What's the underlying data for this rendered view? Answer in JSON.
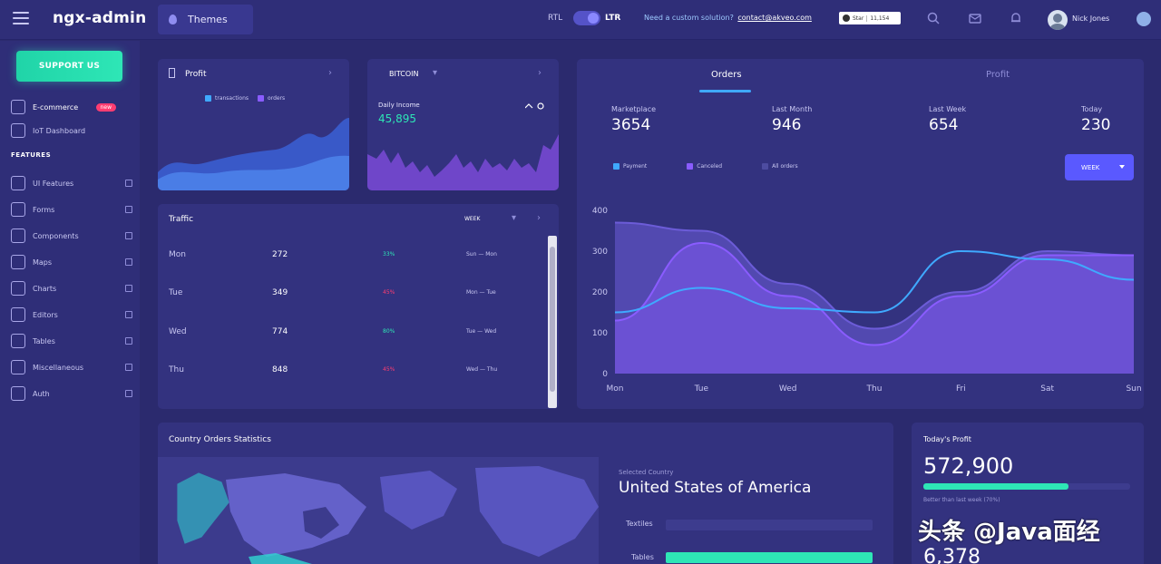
{
  "header": {
    "logo": "ngx-admin",
    "themes_label": "Themes",
    "rtl_label": "RTL",
    "ltr_label": "LTR",
    "promo_text": "Need a custom solution?",
    "promo_link": "contact@akveo.com",
    "stars_label": "Star",
    "stars_count": "11,154",
    "user_name": "Nick Jones"
  },
  "sidebar": {
    "support_label": "SUPPORT US",
    "top_items": [
      {
        "label": "E-commerce",
        "badge": "new",
        "icon": "shopping-cart-icon"
      },
      {
        "label": "IoT Dashboard",
        "icon": "home-icon"
      }
    ],
    "features_title": "FEATURES",
    "items": [
      {
        "label": "UI Features",
        "icon": "layout-icon"
      },
      {
        "label": "Forms",
        "icon": "edit-icon"
      },
      {
        "label": "Components",
        "icon": "keypad-icon"
      },
      {
        "label": "Maps",
        "icon": "map-icon"
      },
      {
        "label": "Charts",
        "icon": "pie-chart-icon"
      },
      {
        "label": "Editors",
        "icon": "text-icon"
      },
      {
        "label": "Tables",
        "icon": "grid-icon"
      },
      {
        "label": "Miscellaneous",
        "icon": "shuffle-icon"
      },
      {
        "label": "Auth",
        "icon": "lock-icon"
      }
    ]
  },
  "profit_card": {
    "title": "Profit",
    "legend": [
      "transactions",
      "orders"
    ]
  },
  "bitcoin_card": {
    "title": "BITCOIN",
    "income_label": "Daily Income",
    "income_value": "45,895"
  },
  "traffic": {
    "title": "Traffic",
    "period": "WEEK",
    "rows": [
      {
        "day": "Mon",
        "value": "272",
        "delta": "33%",
        "delta_dir": "up",
        "compare": "Sun  —  Mon"
      },
      {
        "day": "Tue",
        "value": "349",
        "delta": "45%",
        "delta_dir": "down",
        "compare": "Mon  —  Tue"
      },
      {
        "day": "Wed",
        "value": "774",
        "delta": "80%",
        "delta_dir": "up",
        "compare": "Tue  —  Wed"
      },
      {
        "day": "Thu",
        "value": "848",
        "delta": "45%",
        "delta_dir": "down",
        "compare": "Wed  —  Thu"
      }
    ]
  },
  "orders": {
    "tabs": [
      "Orders",
      "Profit"
    ],
    "stats": [
      {
        "label": "Marketplace",
        "value": "3654"
      },
      {
        "label": "Last Month",
        "value": "946"
      },
      {
        "label": "Last Week",
        "value": "654"
      },
      {
        "label": "Today",
        "value": "230"
      }
    ],
    "legend": [
      "Payment",
      "Canceled",
      "All orders"
    ],
    "period": "WEEK"
  },
  "chart_data": {
    "type": "area",
    "categories": [
      "Mon",
      "Tue",
      "Wed",
      "Thu",
      "Fri",
      "Sat",
      "Sun"
    ],
    "series": [
      {
        "name": "Payment",
        "values": [
          150,
          210,
          160,
          150,
          300,
          280,
          230
        ],
        "color": "#3fa9ff"
      },
      {
        "name": "Canceled",
        "values": [
          130,
          320,
          190,
          70,
          190,
          290,
          290
        ],
        "color": "#8a5cff"
      },
      {
        "name": "All orders",
        "values": [
          370,
          350,
          220,
          110,
          200,
          300,
          290
        ],
        "color": "#6c5cd8"
      }
    ],
    "ylim": [
      0,
      400
    ],
    "yticks": [
      0,
      100,
      200,
      300,
      400
    ],
    "xlabel": "",
    "ylabel": ""
  },
  "country": {
    "title": "Country Orders Statistics",
    "selected_label": "Selected Country",
    "selected_country": "United States of America",
    "bars": [
      {
        "label": "Textiles",
        "fraction": 0.0
      },
      {
        "label": "Tables",
        "fraction": 1.0
      }
    ]
  },
  "today_profit": {
    "title": "Today's Profit",
    "value": "572,900",
    "progress": 0.7,
    "caption": "Better than last week (70%)",
    "next_value": "6,378"
  },
  "colors": {
    "accent": "#3fa9ff",
    "support": "#2ee6b6",
    "danger": "#ff3d71",
    "primary": "#5a59ff"
  },
  "watermark": "头条 @Java面经"
}
